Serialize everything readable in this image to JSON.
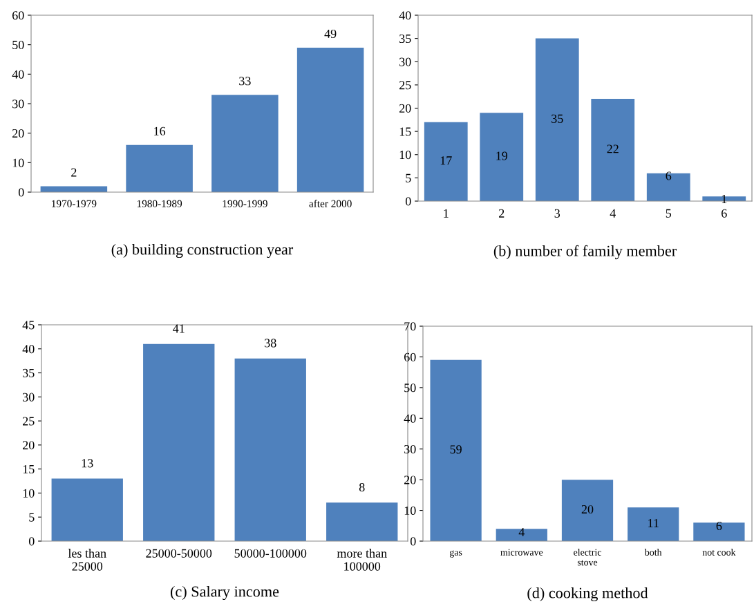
{
  "chart_data": [
    {
      "type": "bar",
      "title": "(a) building construction year",
      "categories": [
        "1970-1979",
        "1980-1989",
        "1990-1999",
        "after 2000"
      ],
      "values": [
        2,
        16,
        33,
        49
      ],
      "color": "#4f81bd",
      "ylim": [
        0,
        60
      ],
      "yticks": [
        0,
        10,
        20,
        30,
        40,
        50,
        60
      ],
      "data_labels": true,
      "grid": false,
      "legend": false
    },
    {
      "type": "bar",
      "title": "(b) number of family member",
      "categories": [
        "1",
        "2",
        "3",
        "4",
        "5",
        "6"
      ],
      "values": [
        17,
        19,
        35,
        22,
        6,
        1
      ],
      "color": "#4f81bd",
      "ylim": [
        0,
        40
      ],
      "yticks": [
        0,
        5,
        10,
        15,
        20,
        25,
        30,
        35,
        40
      ],
      "data_labels": true,
      "grid": false,
      "legend": false
    },
    {
      "type": "bar",
      "title": "(c) Salary income",
      "categories": [
        "les than\n25000",
        "25000-50000",
        "50000-100000",
        "more than\n100000"
      ],
      "values": [
        13,
        41,
        38,
        8
      ],
      "color": "#4f81bd",
      "ylim": [
        0,
        45
      ],
      "yticks": [
        0,
        5,
        10,
        15,
        20,
        25,
        30,
        35,
        40,
        45
      ],
      "data_labels": true,
      "grid": false,
      "legend": false
    },
    {
      "type": "bar",
      "title": "(d) cooking method",
      "categories": [
        "gas",
        "microwave",
        "electric\nstove",
        "both",
        "not cook"
      ],
      "values": [
        59,
        4,
        20,
        11,
        6
      ],
      "color": "#4f81bd",
      "ylim": [
        0,
        70
      ],
      "yticks": [
        0,
        10,
        20,
        30,
        40,
        50,
        60,
        70
      ],
      "data_labels": true,
      "grid": false,
      "legend": false
    }
  ]
}
